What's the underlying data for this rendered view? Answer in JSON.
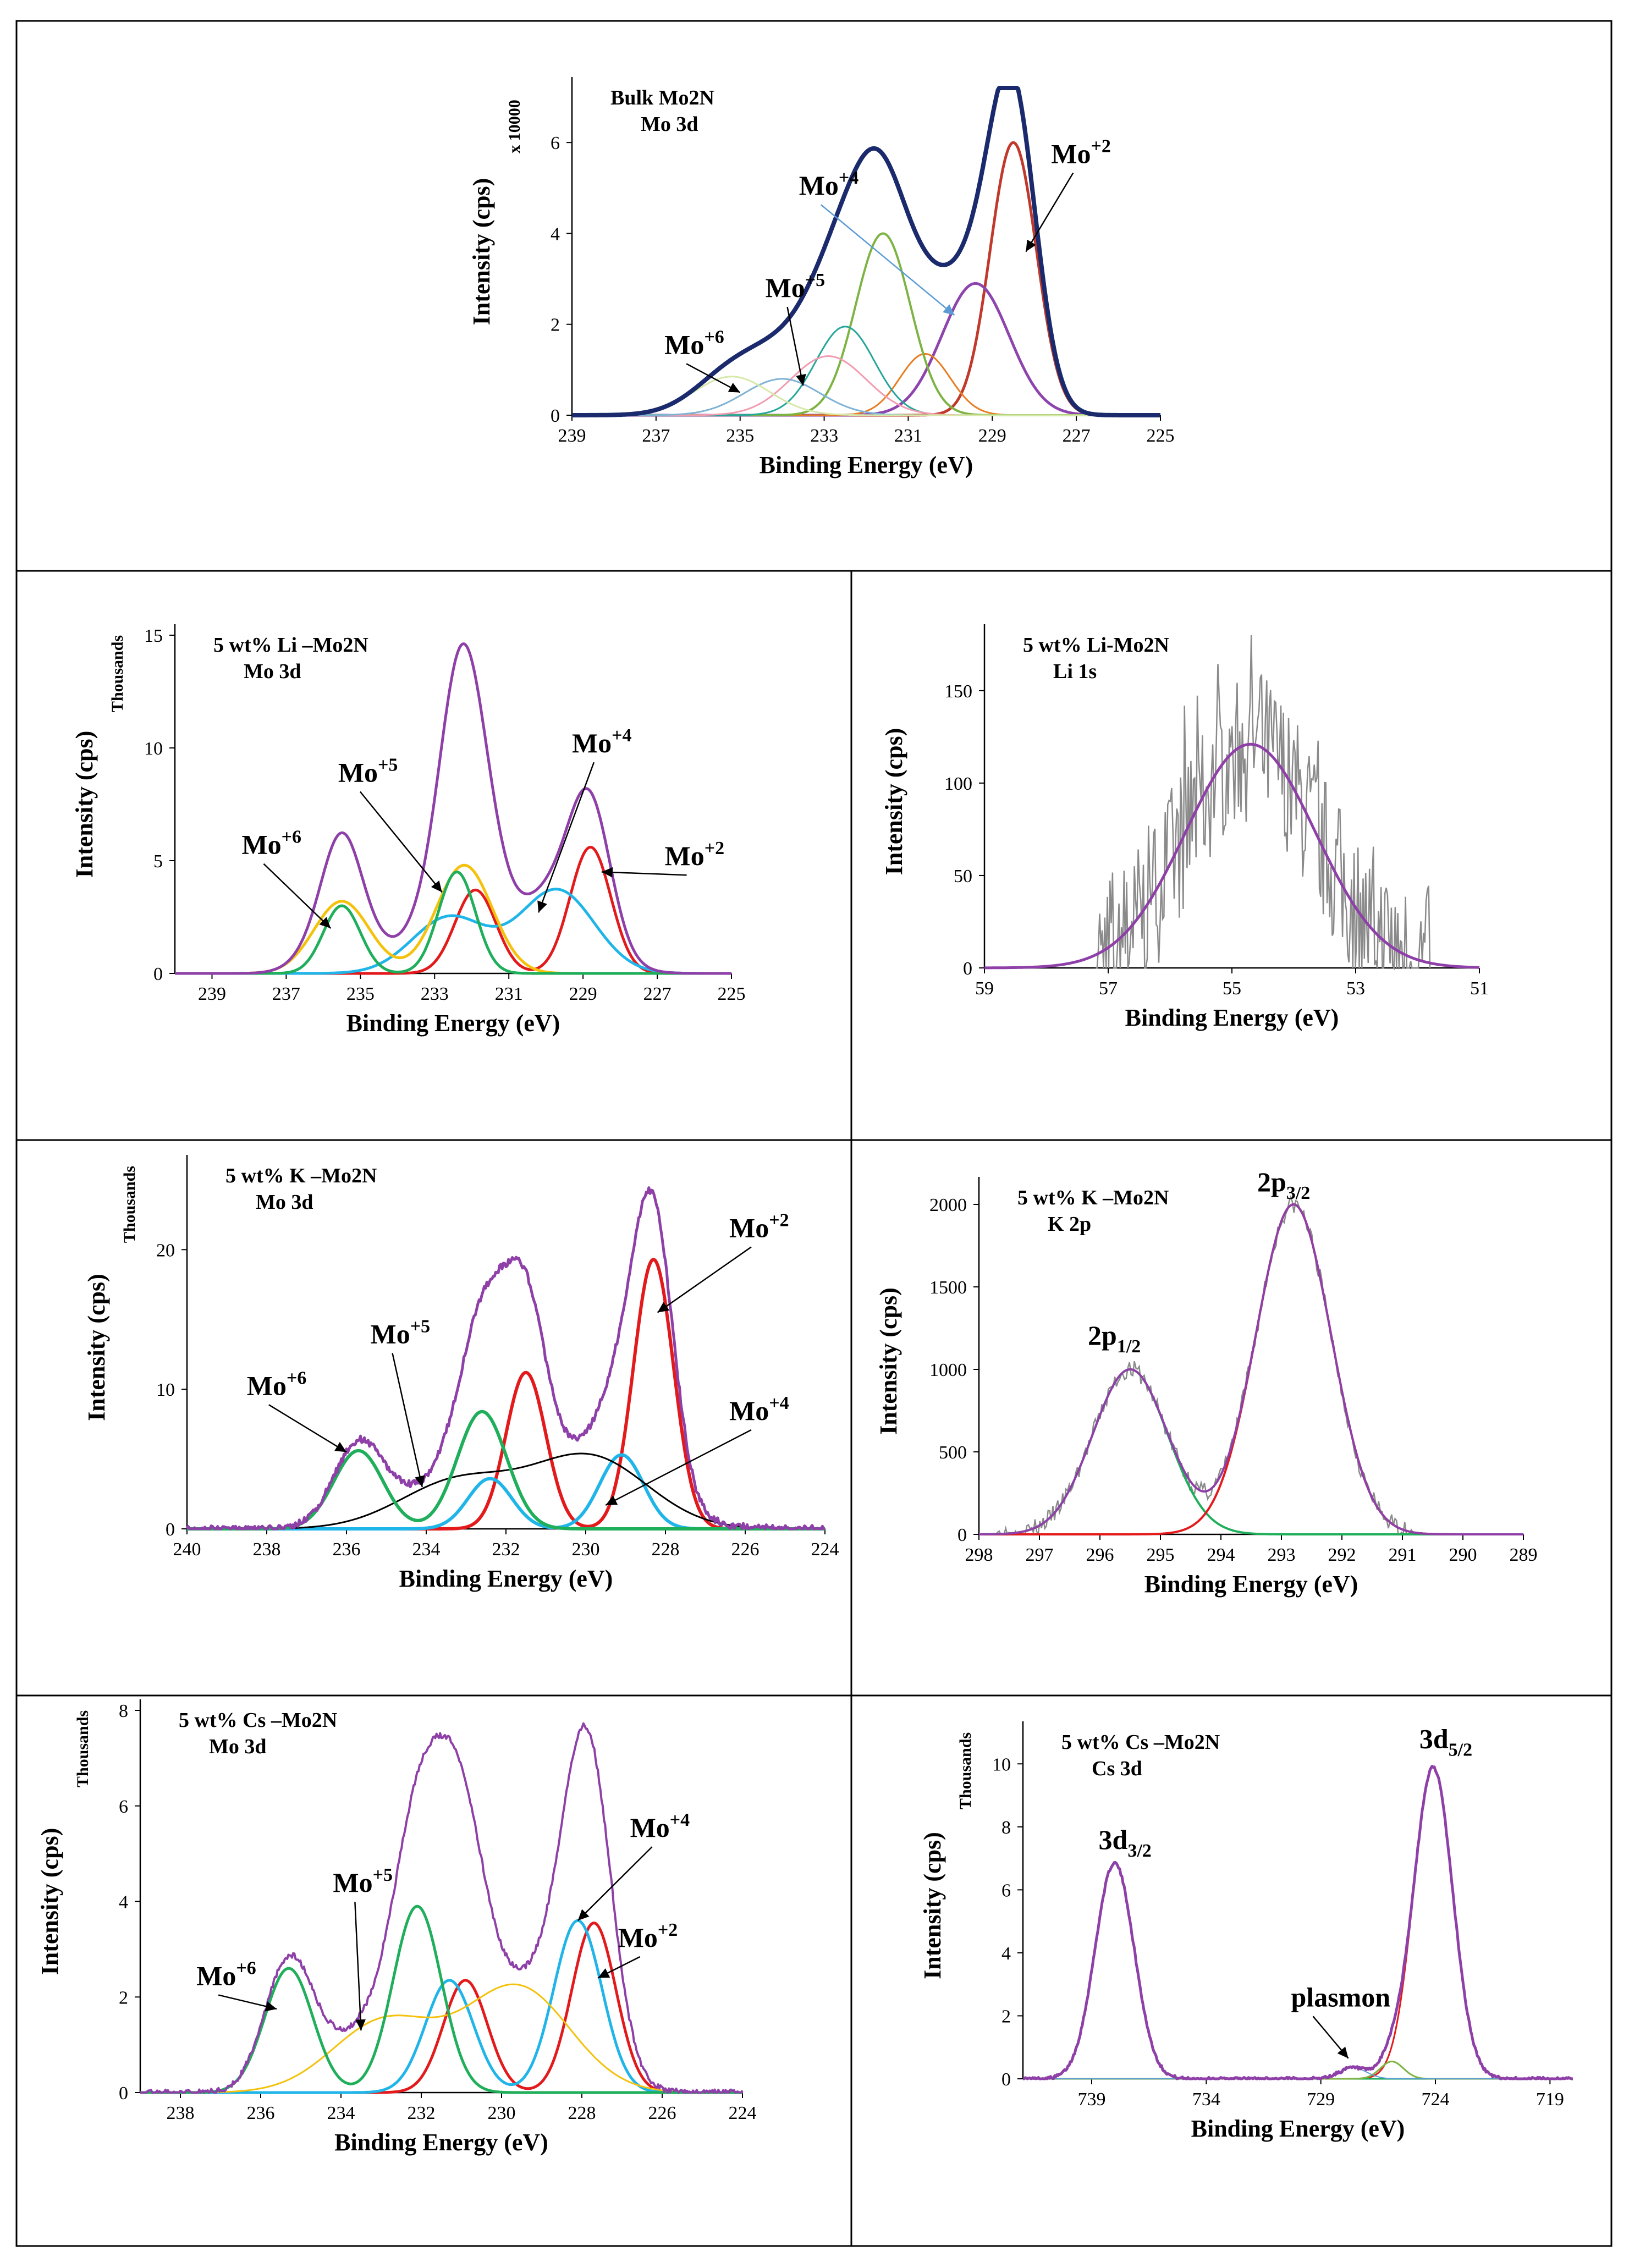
{
  "chart_data": [
    {
      "type": "line",
      "panel": "bulk",
      "annotation_lines": [
        "Bulk Mo2N",
        "Mo 3d"
      ],
      "xlabel": "Binding Energy (eV)",
      "ylabel": "Intensity (cps)",
      "y_multiplier": "x 10000",
      "xlim": [
        239,
        225
      ],
      "ylim": [
        0,
        7.2
      ],
      "xticks": [
        239,
        237,
        235,
        233,
        231,
        229,
        227,
        225
      ],
      "yticks": [
        0,
        2,
        4,
        6
      ],
      "noise": 0,
      "series": [
        {
          "name": "Mo+2 3d5/2",
          "color": "#c0392b",
          "width": 5,
          "peaks": [
            [
              228.5,
              6.0,
              0.55
            ]
          ]
        },
        {
          "name": "Mo+2 3d3/2",
          "color": "#8e44ad",
          "width": 5,
          "peaks": [
            [
              229.4,
              2.9,
              0.8
            ]
          ]
        },
        {
          "name": "Mo+4 3d5/2",
          "color": "#e67e22",
          "width": 3,
          "peaks": [
            [
              230.6,
              1.35,
              0.6
            ]
          ]
        },
        {
          "name": "Mo+4 3d3/2",
          "color": "#7cb342",
          "width": 4,
          "peaks": [
            [
              231.6,
              4.0,
              0.65
            ]
          ]
        },
        {
          "name": "Mo+5 3d5/2",
          "color": "#26a69a",
          "width": 3,
          "peaks": [
            [
              232.5,
              1.95,
              0.7
            ]
          ]
        },
        {
          "name": "Mo+5 3d3/2",
          "color": "#f19cb0",
          "width": 3,
          "peaks": [
            [
              232.9,
              1.3,
              0.9
            ]
          ]
        },
        {
          "name": "Mo+6 3d5/2",
          "color": "#7fb3d5",
          "width": 3,
          "peaks": [
            [
              234.0,
              0.8,
              0.9
            ]
          ]
        },
        {
          "name": "Mo+6 3d3/2",
          "color": "#d6e9a8",
          "width": 3,
          "peaks": [
            [
              235.2,
              0.85,
              0.9
            ]
          ]
        },
        {
          "name": "Envelope",
          "color": "#1a2a6c",
          "width": 8,
          "sum": true
        }
      ],
      "labels": [
        {
          "text": "Mo",
          "sup": "+2",
          "x": 227.6,
          "y": 5.55,
          "ax": 228.2,
          "ay": 3.6,
          "arrow": "#000"
        },
        {
          "text": "Mo",
          "sup": "+4",
          "x": 233.6,
          "y": 4.85,
          "ax": 229.9,
          "ay": 2.2,
          "arrow": "#5b9bd5"
        },
        {
          "text": "Mo",
          "sup": "+5",
          "x": 234.4,
          "y": 2.6,
          "ax": 233.5,
          "ay": 0.65,
          "arrow": "#000"
        },
        {
          "text": "Mo",
          "sup": "+6",
          "x": 236.8,
          "y": 1.35,
          "ax": 235.0,
          "ay": 0.5,
          "arrow": "#000"
        }
      ]
    },
    {
      "type": "line",
      "panel": "li-mo3d",
      "annotation_lines": [
        "5 wt% Li –Mo2N",
        "Mo 3d"
      ],
      "xlabel": "Binding Energy (eV)",
      "ylabel": "Intensity (cps)",
      "y_multiplier": "Thousands",
      "xlim": [
        240,
        225
      ],
      "ylim": [
        0,
        15
      ],
      "xticks": [
        239,
        237,
        235,
        233,
        231,
        229,
        227,
        225
      ],
      "yticks": [
        0,
        5,
        10,
        15
      ],
      "noise": 0,
      "series": [
        {
          "name": "Mo+2",
          "color": "#e31a1c",
          "width": 5,
          "peaks": [
            [
              228.8,
              5.6,
              0.55
            ],
            [
              231.9,
              3.7,
              0.55
            ]
          ]
        },
        {
          "name": "Mo+4",
          "color": "#1fb5e8",
          "width": 5,
          "peaks": [
            [
              229.7,
              3.7,
              1.0
            ],
            [
              232.6,
              2.5,
              1.0
            ]
          ]
        },
        {
          "name": "Mo+5",
          "color": "#f4c20d",
          "width": 5,
          "peaks": [
            [
              232.2,
              4.8,
              0.75
            ],
            [
              235.5,
              3.2,
              0.75
            ]
          ]
        },
        {
          "name": "Mo+6",
          "color": "#1fae5a",
          "width": 5,
          "peaks": [
            [
              232.4,
              4.5,
              0.5
            ],
            [
              235.5,
              3.0,
              0.5
            ]
          ]
        },
        {
          "name": "Envelope",
          "color": "#8e3fa8",
          "width": 5,
          "sum": true
        }
      ],
      "labels": [
        {
          "text": "Mo",
          "sup": "+2",
          "x": 226.8,
          "y": 4.8,
          "ax": 228.5,
          "ay": 4.5,
          "arrow": "#000"
        },
        {
          "text": "Mo",
          "sup": "+4",
          "x": 229.3,
          "y": 9.8,
          "ax": 230.2,
          "ay": 2.7,
          "arrow": "#000"
        },
        {
          "text": "Mo",
          "sup": "+5",
          "x": 235.6,
          "y": 8.5,
          "ax": 232.8,
          "ay": 3.6,
          "arrow": "#000"
        },
        {
          "text": "Mo",
          "sup": "+6",
          "x": 238.2,
          "y": 5.3,
          "ax": 235.8,
          "ay": 2.0,
          "arrow": "#000"
        }
      ]
    },
    {
      "type": "line",
      "panel": "li-1s",
      "annotation_lines": [
        "5 wt% Li-Mo2N",
        "Li 1s"
      ],
      "xlabel": "Binding Energy (eV)",
      "ylabel": "Intensity (cps)",
      "y_multiplier": "",
      "xlim": [
        59,
        51
      ],
      "ylim": [
        0,
        180
      ],
      "xticks": [
        59,
        57,
        55,
        53,
        51
      ],
      "yticks": [
        0,
        50,
        100,
        150
      ],
      "noise": 0,
      "raw": {
        "color": "#8a8a8a",
        "xrange": [
          57.2,
          51.8
        ],
        "amp": 42,
        "seed": 7
      },
      "series": [
        {
          "name": "Li 1s fit",
          "color": "#8e3fa8",
          "width": 5,
          "peaks": [
            [
              54.7,
              121,
              1.05
            ]
          ]
        }
      ],
      "labels": []
    },
    {
      "type": "line",
      "panel": "k-mo3d",
      "annotation_lines": [
        "5 wt% K –Mo2N",
        "Mo 3d"
      ],
      "xlabel": "Binding Energy (eV)",
      "ylabel": "Intensity (cps)",
      "y_multiplier": "Thousands",
      "xlim": [
        240,
        224
      ],
      "ylim": [
        0,
        26
      ],
      "xticks": [
        240,
        238,
        236,
        234,
        232,
        230,
        228,
        226,
        224
      ],
      "yticks": [
        0,
        10,
        20
      ],
      "noise": 0.25,
      "series": [
        {
          "name": "Mo+2",
          "color": "#e31a1c",
          "width": 6,
          "peaks": [
            [
              228.3,
              19.3,
              0.5
            ],
            [
              231.5,
              11.2,
              0.5
            ]
          ]
        },
        {
          "name": "Mo+4",
          "color": "#1fb5e8",
          "width": 6,
          "peaks": [
            [
              229.1,
              5.3,
              0.55
            ],
            [
              232.4,
              3.6,
              0.55
            ]
          ]
        },
        {
          "name": "Mo+5",
          "color": "#000000",
          "width": 3,
          "peaks": [
            [
              229.9,
              5.1,
              1.45
            ],
            [
              233.2,
              3.4,
              1.45
            ]
          ]
        },
        {
          "name": "Mo+6",
          "color": "#1fae5a",
          "width": 6,
          "peaks": [
            [
              232.6,
              8.4,
              0.62
            ],
            [
              235.7,
              5.6,
              0.62
            ]
          ]
        },
        {
          "name": "Envelope",
          "color": "#8e3fa8",
          "width": 5,
          "sum": true
        }
      ],
      "labels": [
        {
          "text": "Mo",
          "sup": "+2",
          "x": 226.4,
          "y": 20.9,
          "ax": 228.2,
          "ay": 15.5,
          "arrow": "#000"
        },
        {
          "text": "Mo",
          "sup": "+4",
          "x": 226.4,
          "y": 7.8,
          "ax": 229.5,
          "ay": 1.7,
          "arrow": "#000"
        },
        {
          "text": "Mo",
          "sup": "+5",
          "x": 235.4,
          "y": 13.3,
          "ax": 234.1,
          "ay": 3.0,
          "arrow": "#000"
        },
        {
          "text": "Mo",
          "sup": "+6",
          "x": 238.5,
          "y": 9.6,
          "ax": 236.0,
          "ay": 5.5,
          "arrow": "#000"
        }
      ]
    },
    {
      "type": "line",
      "panel": "k-2p",
      "annotation_lines": [
        "5 wt% K –Mo2N",
        "K 2p"
      ],
      "xlabel": "Binding Energy (eV)",
      "ylabel": "Intensity (cps)",
      "y_multiplier": "",
      "xlim": [
        298,
        289
      ],
      "ylim": [
        0,
        2100
      ],
      "xticks": [
        298,
        297,
        296,
        295,
        294,
        293,
        292,
        291,
        290,
        289
      ],
      "yticks": [
        0,
        500,
        1000,
        1500,
        2000
      ],
      "noise": 22,
      "raw": {
        "color": "#8a8a8a",
        "xrange": [
          297.8,
          290.8
        ],
        "amp": 0,
        "seed": 3
      },
      "series": [
        {
          "name": "2p1/2",
          "color": "#1fae5a",
          "width": 4,
          "peaks": [
            [
              295.5,
              1000,
              0.62
            ]
          ]
        },
        {
          "name": "2p3/2",
          "color": "#e31a1c",
          "width": 4,
          "peaks": [
            [
              292.8,
              2000,
              0.62
            ]
          ]
        },
        {
          "name": "Envelope",
          "color": "#8e3fa8",
          "width": 4,
          "sum": true
        }
      ],
      "labels": [
        {
          "text": "2p",
          "sub": "3/2",
          "x": 293.4,
          "y": 2080,
          "ax": null,
          "ay": null,
          "arrow": null
        },
        {
          "text": "2p",
          "sub": "1/2",
          "x": 296.2,
          "y": 1150,
          "ax": null,
          "ay": null,
          "arrow": null
        }
      ]
    },
    {
      "type": "line",
      "panel": "cs-mo3d",
      "annotation_lines": [
        "5 wt% Cs –Mo2N",
        "Mo 3d"
      ],
      "xlabel": "Binding Energy (eV)",
      "ylabel": "Intensity (cps)",
      "y_multiplier": "Thousands",
      "xlim": [
        239,
        224
      ],
      "ylim": [
        0,
        8
      ],
      "xticks": [
        238,
        236,
        234,
        232,
        230,
        228,
        226,
        224
      ],
      "yticks": [
        0,
        2,
        4,
        6,
        8
      ],
      "noise": 0.06,
      "series": [
        {
          "name": "Mo+2",
          "color": "#e31a1c",
          "width": 5,
          "peaks": [
            [
              227.7,
              3.55,
              0.55
            ],
            [
              230.9,
              2.35,
              0.55
            ]
          ]
        },
        {
          "name": "Mo+4",
          "color": "#1fb5e8",
          "width": 5,
          "peaks": [
            [
              228.1,
              3.6,
              0.6
            ],
            [
              231.3,
              2.35,
              0.6
            ]
          ]
        },
        {
          "name": "Mo+5",
          "color": "#f4c20d",
          "width": 3,
          "peaks": [
            [
              229.6,
              2.2,
              1.3
            ],
            [
              232.9,
              1.5,
              1.3
            ]
          ]
        },
        {
          "name": "Mo+6",
          "color": "#1fae5a",
          "width": 5,
          "peaks": [
            [
              232.1,
              3.9,
              0.6
            ],
            [
              235.3,
              2.6,
              0.6
            ]
          ]
        },
        {
          "name": "Envelope",
          "color": "#8e3fa8",
          "width": 4,
          "sum": true
        }
      ],
      "labels": [
        {
          "text": "Mo",
          "sup": "+2",
          "x": 227.1,
          "y": 3.05,
          "ax": 227.6,
          "ay": 2.4,
          "arrow": "#000"
        },
        {
          "text": "Mo",
          "sup": "+4",
          "x": 226.8,
          "y": 5.35,
          "ax": 228.1,
          "ay": 3.6,
          "arrow": "#000"
        },
        {
          "text": "Mo",
          "sup": "+5",
          "x": 234.2,
          "y": 4.2,
          "ax": 233.5,
          "ay": 1.3,
          "arrow": "#000"
        },
        {
          "text": "Mo",
          "sup": "+6",
          "x": 237.6,
          "y": 2.25,
          "ax": 235.6,
          "ay": 1.75,
          "arrow": "#000"
        }
      ]
    },
    {
      "type": "line",
      "panel": "cs-3d",
      "annotation_lines": [
        "5 wt% Cs –Mo2N",
        "Cs 3d"
      ],
      "xlabel": "Binding Energy (eV)",
      "ylabel": "Intensity (cps)",
      "y_multiplier": "Thousands",
      "xlim": [
        742,
        718
      ],
      "ylim": [
        0,
        11
      ],
      "xticks": [
        739,
        734,
        729,
        724,
        719
      ],
      "yticks": [
        0,
        2,
        4,
        6,
        8,
        10
      ],
      "noise": 0.05,
      "series": [
        {
          "name": "3d5/2 fit",
          "color": "#e31a1c",
          "width": 3,
          "peaks": [
            [
              724.1,
              9.9,
              0.85
            ]
          ]
        },
        {
          "name": "3d3/2 fit",
          "color": "#1fae5a",
          "width": 3,
          "peaks": [
            [
              738.0,
              6.85,
              0.85
            ]
          ]
        },
        {
          "name": "plasmon",
          "color": "#7cb342",
          "width": 3,
          "peaks": [
            [
              725.9,
              0.55,
              0.5
            ]
          ]
        },
        {
          "name": "plasmon2",
          "color": "#5b9bd5",
          "width": 2,
          "peaks": [
            [
              727.6,
              0.35,
              0.6
            ]
          ]
        },
        {
          "name": "Envelope",
          "color": "#8e3fa8",
          "width": 5,
          "sum": true
        }
      ],
      "labels": [
        {
          "text": "3d",
          "sub": "5/2",
          "x": 724.7,
          "y": 10.5,
          "ax": null,
          "ay": null,
          "arrow": null
        },
        {
          "text": "3d",
          "sub": "3/2",
          "x": 738.7,
          "y": 7.3,
          "ax": null,
          "ay": null,
          "arrow": null
        },
        {
          "text": "plasmon",
          "x": 730.3,
          "y": 2.3,
          "ax": 727.8,
          "ay": 0.65,
          "arrow": "#000"
        }
      ]
    }
  ]
}
